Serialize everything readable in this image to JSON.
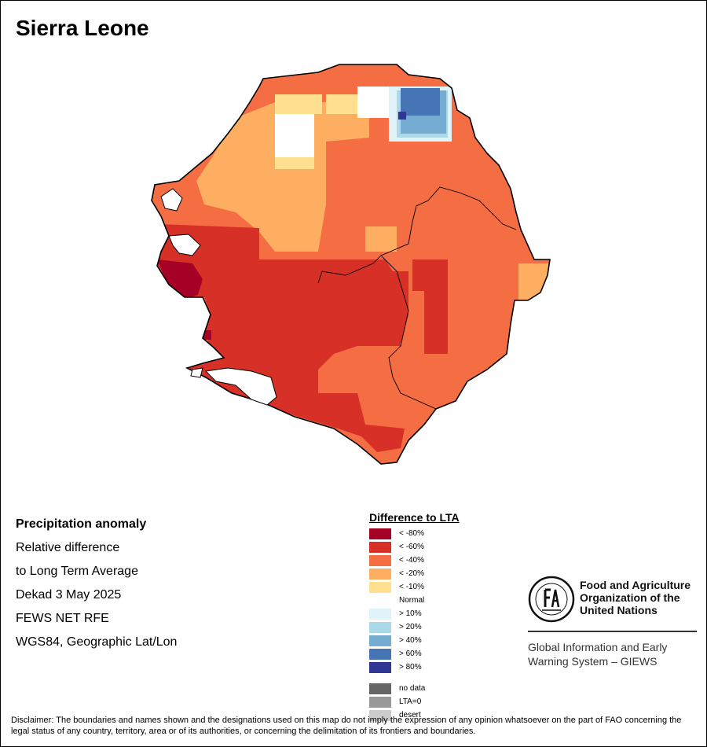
{
  "title": "Sierra Leone",
  "info": {
    "heading": "Precipitation anomaly",
    "line1": "Relative difference",
    "line2": "to Long Term Average",
    "line3": "Dekad 3 May 2025",
    "line4": "FEWS NET RFE",
    "line5": "WGS84, Geographic Lat/Lon"
  },
  "legend": {
    "title": "Difference to LTA",
    "items": [
      {
        "label": "< -80%",
        "color": "#a50026"
      },
      {
        "label": "< -60%",
        "color": "#d73027"
      },
      {
        "label": "< -40%",
        "color": "#f46d43"
      },
      {
        "label": "< -20%",
        "color": "#fdae61"
      },
      {
        "label": "< -10%",
        "color": "#fee090"
      },
      {
        "label": "Normal",
        "color": "#ffffff"
      },
      {
        "label": "> 10%",
        "color": "#e0f3f8"
      },
      {
        "label": "> 20%",
        "color": "#abd9e9"
      },
      {
        "label": "> 40%",
        "color": "#74add1"
      },
      {
        "label": "> 60%",
        "color": "#4575b4"
      },
      {
        "label": "> 80%",
        "color": "#313695"
      }
    ],
    "extra": [
      {
        "label": "no data",
        "color": "#666666"
      },
      {
        "label": "LTA=0",
        "color": "#999999"
      },
      {
        "label": "desert",
        "color": "#cccccc"
      }
    ]
  },
  "fao": {
    "line1": "Food and Agriculture",
    "line2": "Organization of the",
    "line3": "United Nations",
    "giews1": "Global Information and Early",
    "giews2": "Warning System – GIEWS"
  },
  "disclaimer": "Disclaimer: The boundaries and names shown and the designations used on this map do not imply the expression of any opinion whatsoever on the part of FAO concerning the legal status of any country, territory, area or of its authorities, or concerning the delimitation of its frontiers and boundaries."
}
